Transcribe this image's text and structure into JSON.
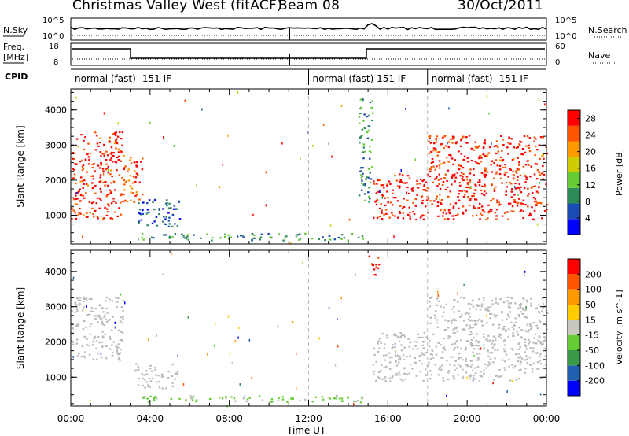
{
  "header": {
    "site_title": "Christmas Valley West (fitACF)",
    "beam_label": "Beam 08",
    "date": "30/Oct/2011"
  },
  "top_panels": {
    "nsky_label": "N.Sky",
    "nsearch_label": "N.Search",
    "freq_label_1": "Freq.",
    "freq_label_2": "[MHz]",
    "nave_label": "Nave",
    "cpid_label": "CPID",
    "noise_ticks": [
      "10^5",
      "10^0"
    ],
    "freq_ticks": [
      "18",
      "8"
    ],
    "nave_ticks": [
      "60",
      "0"
    ]
  },
  "cpid_segments": [
    {
      "start_hour": 0,
      "end_hour": 12,
      "label": "normal (fast) -151 IF"
    },
    {
      "start_hour": 12,
      "end_hour": 18,
      "label": "normal (fast) 151 IF"
    },
    {
      "start_hour": 18,
      "end_hour": 24,
      "label": "normal (fast) -151 IF"
    }
  ],
  "colors": {
    "power_scale": [
      "#0000ff",
      "#1a4cb3",
      "#2f8a5a",
      "#66cc33",
      "#cccc00",
      "#ff9900",
      "#ff5500",
      "#ff0000"
    ],
    "velocity_scale": [
      "#0000ff",
      "#2060b0",
      "#3a9a4a",
      "#66cc33",
      "#c8c8c0",
      "#ffcc00",
      "#ff9900",
      "#ff5500",
      "#ff0000"
    ],
    "ground_scatter": "#bbbbbb"
  },
  "chart_data": [
    {
      "type": "heatmap",
      "name": "power",
      "ylabel": "Slant Range [km]",
      "ylim": [
        180,
        4600
      ],
      "yticks": [
        1000,
        2000,
        3000,
        4000
      ],
      "xlim": [
        0,
        24
      ],
      "colorbar": {
        "label": "Power [dB]",
        "ticks": [
          4,
          8,
          12,
          16,
          20,
          24,
          28
        ],
        "range": [
          0,
          30
        ]
      },
      "regions": [
        {
          "t0": 0.0,
          "t1": 2.6,
          "r0": 900,
          "r1": 3400,
          "level": 27
        },
        {
          "t0": 2.6,
          "t1": 3.6,
          "r0": 1400,
          "r1": 2800,
          "level": 24
        },
        {
          "t0": 3.3,
          "t1": 5.5,
          "r0": 700,
          "r1": 1500,
          "level": 6
        },
        {
          "t0": 3.5,
          "t1": 14.8,
          "r0": 300,
          "r1": 500,
          "level": 9
        },
        {
          "t0": 14.5,
          "t1": 15.2,
          "r0": 1400,
          "r1": 4400,
          "level": 10
        },
        {
          "t0": 15.2,
          "t1": 24.0,
          "r0": 900,
          "r1": 2200,
          "level": 28
        },
        {
          "t0": 18.0,
          "t1": 24.0,
          "r0": 2200,
          "r1": 3300,
          "level": 27
        }
      ]
    },
    {
      "type": "heatmap",
      "name": "velocity",
      "ylabel": "Slant Range [km]",
      "ylim": [
        180,
        4600
      ],
      "yticks": [
        1000,
        2000,
        3000,
        4000
      ],
      "xlim": [
        0,
        24
      ],
      "xticks": [
        "00:00",
        "04:00",
        "08:00",
        "12:00",
        "16:00",
        "20:00",
        "00:00"
      ],
      "xlabel": "Time UT",
      "colorbar": {
        "label": "Velocity [m s^-1]",
        "ticks": [
          200,
          100,
          50,
          15,
          -15,
          -50,
          -100,
          -200
        ],
        "range": [
          -250,
          250
        ]
      },
      "regions": [
        {
          "t0": 0.0,
          "t1": 2.6,
          "r0": 1500,
          "r1": 3300,
          "level": 0
        },
        {
          "t0": 3.2,
          "t1": 5.4,
          "r0": 700,
          "r1": 1400,
          "level": 0
        },
        {
          "t0": 3.5,
          "t1": 14.8,
          "r0": 300,
          "r1": 500,
          "level": -40
        },
        {
          "t0": 15.0,
          "t1": 15.6,
          "r0": 3900,
          "r1": 4500,
          "level": 200
        },
        {
          "t0": 15.2,
          "t1": 24.0,
          "r0": 900,
          "r1": 2300,
          "level": 0
        },
        {
          "t0": 18.0,
          "t1": 24.0,
          "r0": 2300,
          "r1": 3300,
          "level": 0
        }
      ]
    }
  ]
}
